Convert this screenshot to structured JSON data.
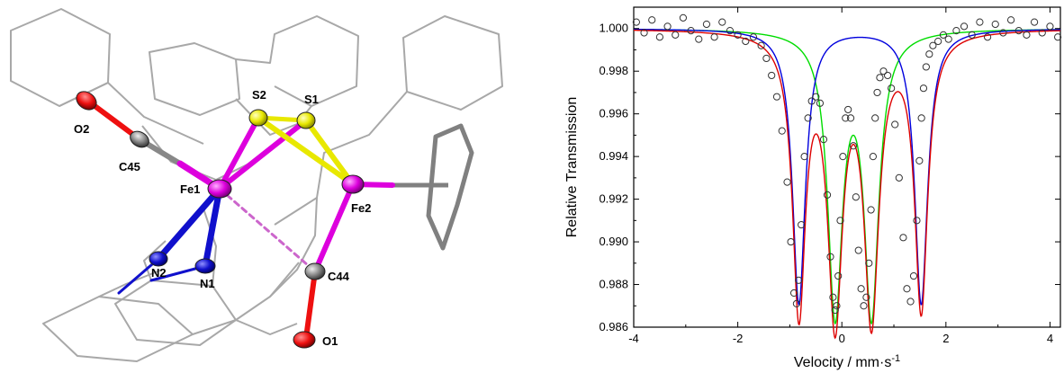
{
  "structure": {
    "atom_labels": {
      "O2": "O2",
      "C45": "C45",
      "Fe1": "Fe1",
      "S2": "S2",
      "S1": "S1",
      "Fe2": "Fe2",
      "N2": "N2",
      "N1": "N1",
      "C44": "C44",
      "O1": "O1"
    },
    "colors": {
      "Fe": "#dd00dd",
      "S": "#e8e800",
      "N": "#1010cc",
      "O": "#ee1010",
      "C": "#888888",
      "wire": "#a8a8a8"
    }
  },
  "chart_data": {
    "type": "scatter",
    "xlabel": "Velocity / mm·s",
    "xlabel_sup": "-1",
    "ylabel": "Relative Transmission",
    "xlim": [
      -4,
      4.2
    ],
    "ylim": [
      0.986,
      1.001
    ],
    "x_ticks": [
      -4,
      -2,
      0,
      2,
      4
    ],
    "x_tick_labels": [
      "-4",
      "-2",
      "0",
      "2",
      "4"
    ],
    "y_ticks": [
      0.986,
      0.988,
      0.99,
      0.992,
      0.994,
      0.996,
      0.998,
      1.0
    ],
    "y_tick_labels": [
      "0.986",
      "0.988",
      "0.990",
      "0.992",
      "0.994",
      "0.996",
      "0.998",
      "1.000"
    ],
    "grid": false,
    "legend": "none",
    "series": [
      {
        "kind": "points",
        "color": "#333333",
        "x": [
          -3.95,
          -3.8,
          -3.65,
          -3.5,
          -3.35,
          -3.2,
          -3.05,
          -2.9,
          -2.75,
          -2.6,
          -2.45,
          -2.3,
          -2.15,
          -2.0,
          -1.85,
          -1.7,
          -1.55,
          -1.45,
          -1.35,
          -1.25,
          -1.15,
          -1.05,
          -0.98,
          -0.92,
          -0.87,
          -0.83,
          -0.78,
          -0.72,
          -0.65,
          -0.58,
          -0.5,
          -0.42,
          -0.35,
          -0.28,
          -0.22,
          -0.17,
          -0.13,
          -0.1,
          -0.07,
          -0.03,
          0.02,
          0.07,
          0.12,
          0.17,
          0.22,
          0.27,
          0.32,
          0.37,
          0.42,
          0.47,
          0.52,
          0.56,
          0.6,
          0.64,
          0.68,
          0.73,
          0.8,
          0.88,
          0.95,
          1.02,
          1.1,
          1.18,
          1.25,
          1.32,
          1.38,
          1.44,
          1.49,
          1.53,
          1.57,
          1.62,
          1.68,
          1.75,
          1.85,
          1.95,
          2.05,
          2.2,
          2.35,
          2.5,
          2.65,
          2.8,
          2.95,
          3.1,
          3.25,
          3.4,
          3.55,
          3.7,
          3.85,
          4.0,
          4.15
        ],
        "y": [
          1.0003,
          0.9998,
          1.0004,
          0.9996,
          1.0001,
          0.9997,
          1.0005,
          0.9999,
          0.9995,
          1.0002,
          0.9996,
          1.0003,
          0.9999,
          0.9997,
          0.9994,
          0.9996,
          0.9992,
          0.9986,
          0.9978,
          0.9968,
          0.9952,
          0.9928,
          0.99,
          0.9876,
          0.9871,
          0.9882,
          0.9908,
          0.994,
          0.9958,
          0.9966,
          0.9968,
          0.9965,
          0.9948,
          0.9922,
          0.9893,
          0.9874,
          0.9868,
          0.987,
          0.9884,
          0.991,
          0.994,
          0.9958,
          0.9962,
          0.9958,
          0.9945,
          0.9921,
          0.9896,
          0.9878,
          0.987,
          0.9874,
          0.989,
          0.9915,
          0.994,
          0.9958,
          0.997,
          0.9977,
          0.998,
          0.9978,
          0.9972,
          0.9955,
          0.993,
          0.9902,
          0.9878,
          0.9872,
          0.9884,
          0.991,
          0.9938,
          0.9958,
          0.9972,
          0.9982,
          0.9988,
          0.9992,
          0.9994,
          0.9997,
          0.9995,
          0.9999,
          1.0001,
          0.9997,
          1.0003,
          0.9996,
          1.0002,
          0.9998,
          1.0004,
          0.9999,
          0.9997,
          1.0003,
          0.9998,
          1.0001,
          0.9996
        ]
      },
      {
        "kind": "fit-total",
        "color": "#dd0000"
      },
      {
        "kind": "fit-doublet",
        "color": "#0000dd",
        "center": 0.35,
        "split": 2.35,
        "depth": 0.0129,
        "width": 0.3
      },
      {
        "kind": "fit-doublet",
        "color": "#00dd00",
        "center": 0.22,
        "split": 0.7,
        "depth": 0.0131,
        "width": 0.34
      }
    ]
  }
}
